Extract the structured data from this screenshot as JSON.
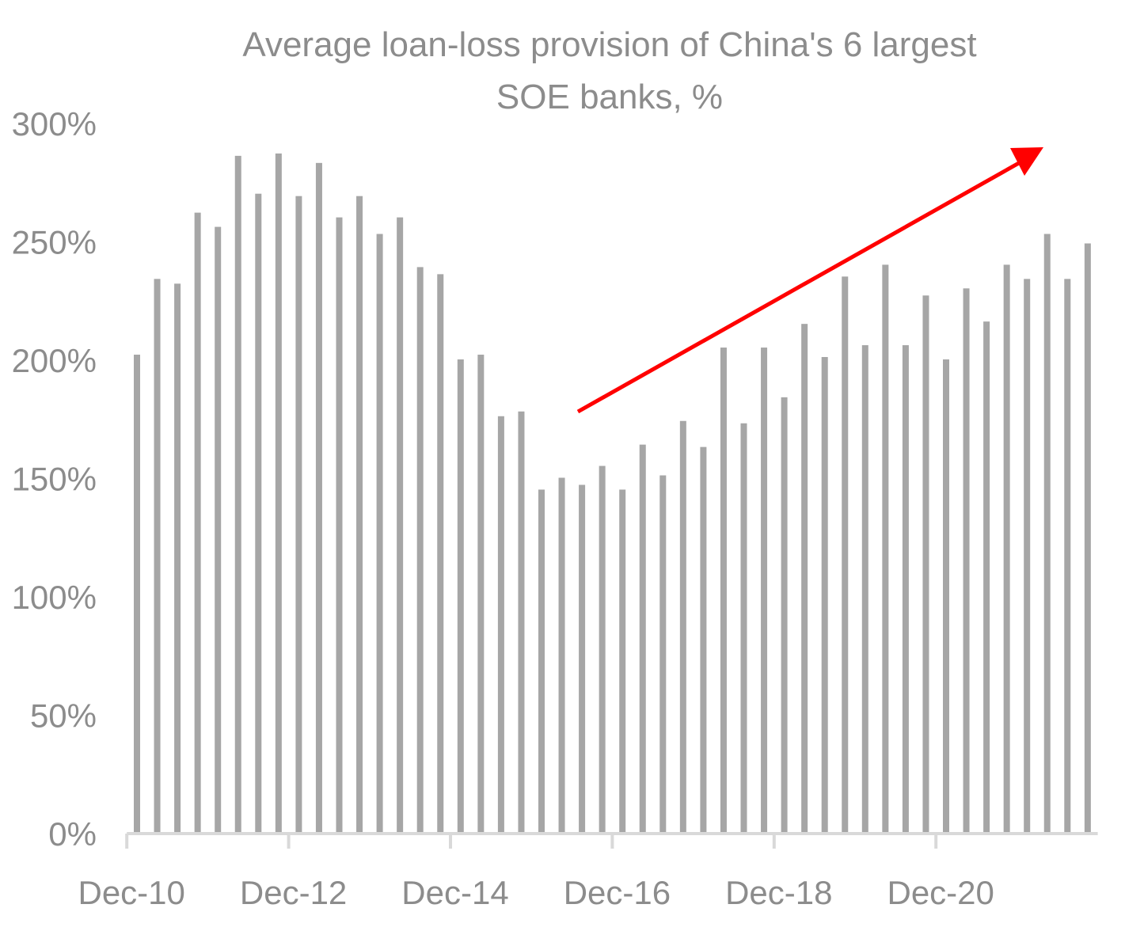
{
  "chart_data": {
    "type": "bar",
    "title_lines": [
      "Average loan-loss provision of China's 6 largest",
      "SOE banks, %"
    ],
    "xlabel": "",
    "ylabel": "",
    "ylim": [
      0,
      300
    ],
    "y_ticks": [
      "0%",
      "50%",
      "100%",
      "150%",
      "200%",
      "250%",
      "300%"
    ],
    "y_tick_values": [
      0,
      50,
      100,
      150,
      200,
      250,
      300
    ],
    "x_tick_labels": [
      "Dec-10",
      "Dec-12",
      "Dec-14",
      "Dec-16",
      "Dec-18",
      "Dec-20"
    ],
    "frequency": "quarterly",
    "start_period": "Dec-10",
    "values": [
      202,
      234,
      232,
      262,
      256,
      286,
      270,
      287,
      269,
      283,
      260,
      269,
      253,
      260,
      239,
      236,
      200,
      202,
      176,
      178,
      145,
      150,
      147,
      155,
      145,
      164,
      151,
      174,
      163,
      205,
      173,
      205,
      184,
      215,
      201,
      235,
      206,
      240,
      206,
      227,
      200,
      230,
      216,
      240,
      234,
      253,
      234,
      249
    ],
    "grid": false,
    "legend": "none",
    "colors": {
      "bar": "#a6a6a6",
      "axis": "#d9d9d9",
      "text": "#8c8c8c",
      "arrow": "#ff0000"
    },
    "annotation": {
      "type": "arrow",
      "direction": "up-right",
      "color": "#ff0000"
    }
  }
}
